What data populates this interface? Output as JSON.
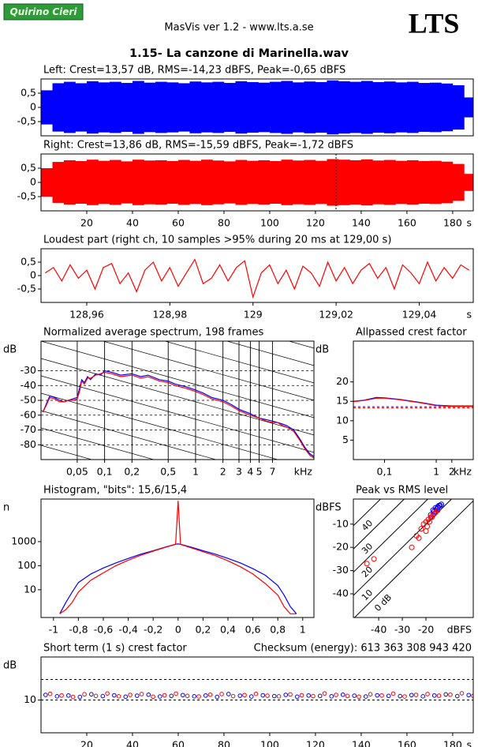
{
  "header": {
    "logo": "Quirino Cieri",
    "app": "MasVis ver 1.2 - www.lts.a.se",
    "brand": "LTS",
    "file": "1.15- La canzone di Marinella.wav"
  },
  "chart_data": [
    {
      "type": "waveform",
      "title": "Left: Crest=13,57 dB, RMS=-14,23 dBFS, Peak=-0,65 dBFS",
      "color": "#0000ff",
      "xlim": [
        0,
        189
      ],
      "ylim": [
        -1,
        1
      ],
      "yticks": [
        {
          "value": 0.5,
          "label": "0,5"
        },
        0,
        {
          "value": -0.5,
          "label": "-0,5"
        }
      ],
      "x": [
        0,
        5,
        10,
        15,
        20,
        25,
        30,
        35,
        40,
        45,
        50,
        55,
        60,
        65,
        70,
        75,
        80,
        85,
        90,
        95,
        100,
        105,
        110,
        115,
        120,
        125,
        130,
        135,
        140,
        145,
        150,
        155,
        160,
        165,
        170,
        175,
        180,
        185
      ],
      "values": [
        0.6,
        0.85,
        0.9,
        0.85,
        0.92,
        0.88,
        0.9,
        0.86,
        0.93,
        0.87,
        0.9,
        0.88,
        0.85,
        0.91,
        0.88,
        0.9,
        0.86,
        0.92,
        0.89,
        0.87,
        0.9,
        0.93,
        0.88,
        0.91,
        0.89,
        0.95,
        0.92,
        0.9,
        0.93,
        0.89,
        0.91,
        0.88,
        0.9,
        0.86,
        0.87,
        0.84,
        0.78,
        0.35
      ]
    },
    {
      "type": "waveform",
      "title": "Right: Crest=13,86 dB, RMS=-15,59 dBFS, Peak=-1,72 dBFS",
      "color": "#ff0000",
      "xlim": [
        0,
        189
      ],
      "ylim": [
        -1,
        1
      ],
      "yticks": [
        {
          "value": 0.5,
          "label": "0,5"
        },
        0,
        {
          "value": -0.5,
          "label": "-0,5"
        }
      ],
      "xticks": [
        20,
        40,
        60,
        80,
        100,
        120,
        140,
        160,
        180
      ],
      "xlabel": "s",
      "marker": 129,
      "x": [
        0,
        5,
        10,
        15,
        20,
        25,
        30,
        35,
        40,
        45,
        50,
        55,
        60,
        65,
        70,
        75,
        80,
        85,
        90,
        95,
        100,
        105,
        110,
        115,
        120,
        125,
        130,
        135,
        140,
        145,
        150,
        155,
        160,
        165,
        170,
        175,
        180,
        185
      ],
      "values": [
        0.5,
        0.72,
        0.78,
        0.75,
        0.8,
        0.76,
        0.79,
        0.74,
        0.8,
        0.77,
        0.78,
        0.75,
        0.79,
        0.76,
        0.8,
        0.77,
        0.74,
        0.79,
        0.76,
        0.78,
        0.75,
        0.8,
        0.77,
        0.79,
        0.76,
        0.82,
        0.8,
        0.78,
        0.81,
        0.77,
        0.79,
        0.76,
        0.78,
        0.75,
        0.76,
        0.73,
        0.65,
        0.3
      ]
    },
    {
      "type": "line",
      "title": "Loudest part (right ch, 10 samples >95% during 20 ms at 129,00 s)",
      "color": "#ff0000",
      "xlim": [
        128.949,
        129.053
      ],
      "ylim": [
        -1,
        1
      ],
      "yticks": [
        {
          "value": 0.5,
          "label": "0,5"
        },
        0,
        {
          "value": -0.5,
          "label": "-0,5"
        }
      ],
      "xticks": [
        {
          "value": 128.96,
          "label": "128,96"
        },
        {
          "value": 128.98,
          "label": "128,98"
        },
        129,
        {
          "value": 129.02,
          "label": "129,02"
        },
        {
          "value": 129.04,
          "label": "129,04"
        }
      ],
      "xlabel": "s",
      "x": [
        128.95,
        128.952,
        128.954,
        128.956,
        128.958,
        128.96,
        128.962,
        128.964,
        128.966,
        128.968,
        128.97,
        128.972,
        128.974,
        128.976,
        128.978,
        128.98,
        128.982,
        128.984,
        128.986,
        128.988,
        128.99,
        128.992,
        128.994,
        128.996,
        128.998,
        129,
        129.002,
        129.004,
        129.006,
        129.008,
        129.01,
        129.012,
        129.014,
        129.016,
        129.018,
        129.02,
        129.022,
        129.024,
        129.026,
        129.028,
        129.03,
        129.032,
        129.034,
        129.036,
        129.038,
        129.04,
        129.042,
        129.044,
        129.046,
        129.048,
        129.05,
        129.052
      ],
      "values": [
        0.1,
        0.3,
        -0.2,
        0.4,
        -0.1,
        0.2,
        -0.5,
        0.3,
        0.45,
        -0.3,
        0.1,
        -0.6,
        0.2,
        0.5,
        -0.2,
        0.3,
        -0.4,
        0.1,
        0.6,
        -0.3,
        -0.1,
        0.4,
        -0.2,
        0.3,
        0.55,
        -0.8,
        0.1,
        0.4,
        -0.3,
        0.2,
        -0.5,
        0.35,
        0.1,
        -0.4,
        0.5,
        -0.2,
        0.3,
        -0.3,
        0.2,
        0.45,
        -0.1,
        0.3,
        -0.5,
        0.4,
        0.1,
        -0.3,
        0.5,
        -0.2,
        0.3,
        -0.1,
        0.4,
        0.2
      ]
    },
    {
      "type": "line",
      "title": "Normalized average spectrum, 198 frames",
      "ylabel": "dB",
      "xlabel": "kHz",
      "xscale": "log",
      "grid": true,
      "xlim": [
        0.02,
        20
      ],
      "ylim": [
        -90,
        -10
      ],
      "yticks": [
        -30,
        -40,
        -50,
        -60,
        -70,
        -80
      ],
      "xticks": [
        {
          "value": 0.05,
          "label": "0,05"
        },
        {
          "value": 0.1,
          "label": "0,1"
        },
        {
          "value": 0.2,
          "label": "0,2"
        },
        {
          "value": 0.5,
          "label": "0,5"
        },
        1,
        2,
        3,
        4,
        5,
        7
      ],
      "x": [
        0.021,
        0.023,
        0.025,
        0.028,
        0.032,
        0.036,
        0.04,
        0.045,
        0.05,
        0.053,
        0.056,
        0.06,
        0.065,
        0.07,
        0.08,
        0.09,
        0.1,
        0.12,
        0.15,
        0.2,
        0.25,
        0.3,
        0.4,
        0.5,
        0.6,
        0.8,
        1,
        1.2,
        1.5,
        2,
        2.5,
        3,
        4,
        5,
        6,
        7,
        8,
        9,
        10,
        12,
        14,
        16,
        18,
        20
      ],
      "series": [
        {
          "color": "#0000ff",
          "values": [
            -58,
            -52,
            -47,
            -48,
            -50,
            -51,
            -50,
            -49,
            -48,
            -42,
            -36,
            -38,
            -34,
            -36,
            -32,
            -33,
            -30,
            -31,
            -33,
            -32,
            -34,
            -33,
            -36,
            -37,
            -39,
            -41,
            -43,
            -45,
            -48,
            -50,
            -53,
            -56,
            -59,
            -62,
            -63,
            -64,
            -65,
            -66,
            -67,
            -70,
            -76,
            -82,
            -86,
            -88
          ]
        },
        {
          "color": "#ff0000",
          "values": [
            -58,
            -53,
            -48,
            -49,
            -51,
            -51,
            -50,
            -50,
            -49,
            -44,
            -37,
            -39,
            -35,
            -35,
            -33,
            -32,
            -31,
            -32,
            -34,
            -33,
            -35,
            -34,
            -37,
            -38,
            -40,
            -42,
            -44,
            -46,
            -49,
            -51,
            -54,
            -57,
            -60,
            -62,
            -64,
            -65,
            -65,
            -67,
            -68,
            -71,
            -77,
            -83,
            -87,
            -89
          ]
        }
      ]
    },
    {
      "type": "line",
      "title": "Allpassed crest factor",
      "ylabel": "dB",
      "xlabel": "kHz",
      "xscale": "log",
      "xlim": [
        0.025,
        5.2
      ],
      "ylim": [
        0,
        30.5
      ],
      "yticks": [
        20,
        15,
        10,
        5
      ],
      "xticks": [
        {
          "value": 0.1,
          "label": "0,1"
        },
        1,
        2
      ],
      "x": [
        0.025,
        0.04,
        0.07,
        0.1,
        0.2,
        0.5,
        1,
        2,
        5.2
      ],
      "series": [
        {
          "color": "#0000ff",
          "mean": 13.6,
          "values": [
            15,
            15.3,
            16,
            15.9,
            15.5,
            14.7,
            14,
            13.8,
            13.8
          ]
        },
        {
          "color": "#ff0000",
          "mean": 13.3,
          "values": [
            14.9,
            15.2,
            15.8,
            15.8,
            15.4,
            14.6,
            13.9,
            13.7,
            13.7
          ]
        }
      ]
    },
    {
      "type": "line",
      "title": "Histogram, \"bits\": 15,6/15,4",
      "ylabel": "n",
      "yscale": "log",
      "xlim": [
        -1.1,
        1.09
      ],
      "ylim": [
        0.7,
        59000
      ],
      "yticks": [
        1000,
        100,
        10
      ],
      "xticks": [
        -1,
        {
          "value": -0.8,
          "label": "-0,8"
        },
        {
          "value": -0.6,
          "label": "-0,6"
        },
        {
          "value": -0.4,
          "label": "-0,4"
        },
        {
          "value": -0.2,
          "label": "-0,2"
        },
        0,
        {
          "value": 0.2,
          "label": "0,2"
        },
        {
          "value": 0.4,
          "label": "0,4"
        },
        {
          "value": 0.6,
          "label": "0,6"
        },
        {
          "value": 0.8,
          "label": "0,8"
        },
        1
      ],
      "x": [
        -0.95,
        -0.9,
        -0.85,
        -0.8,
        -0.7,
        -0.6,
        -0.5,
        -0.4,
        -0.3,
        -0.2,
        -0.1,
        -0.02,
        0,
        0.02,
        0.1,
        0.2,
        0.3,
        0.4,
        0.5,
        0.6,
        0.7,
        0.8,
        0.85,
        0.9,
        0.95
      ],
      "series": [
        {
          "color": "#0000ff",
          "values": [
            1,
            3,
            8,
            20,
            45,
            80,
            130,
            200,
            300,
            420,
            600,
            780,
            800,
            780,
            600,
            420,
            300,
            200,
            130,
            75,
            40,
            15,
            6,
            2,
            1
          ]
        },
        {
          "color": "#ff0000",
          "values": [
            1,
            1.5,
            3,
            8,
            25,
            50,
            100,
            170,
            270,
            400,
            580,
            770,
            50000,
            770,
            560,
            380,
            260,
            160,
            90,
            45,
            18,
            6,
            2,
            1,
            1
          ]
        }
      ]
    },
    {
      "type": "scatter",
      "title": "Peak vs RMS level",
      "ylabel": "dBFS",
      "xlabel": "dBFS",
      "xlim": [
        -50.7,
        0
      ],
      "ylim": [
        -50.2,
        0.8
      ],
      "xticks": [
        -40,
        -30,
        -20
      ],
      "yticks": [
        -10,
        -20,
        -30,
        -40
      ],
      "diagonals": [
        40,
        30,
        20,
        10,
        {
          "value": 0,
          "label": "0 dB"
        }
      ],
      "series": [
        {
          "color": "#0000ff",
          "x": [
            -17,
            -16,
            -15,
            -14,
            -16.5,
            -15.5,
            -14.5,
            -18,
            -13.5,
            -15
          ],
          "values": [
            -4,
            -3,
            -2.5,
            -2,
            -4.5,
            -3.5,
            -2,
            -6,
            -1.5,
            -3
          ]
        },
        {
          "color": "#ff0000",
          "x": [
            -26,
            -24,
            -22,
            -21,
            -20,
            -19,
            -18,
            -17,
            -16,
            -15,
            -20,
            -18.5,
            -17.5,
            -16.5,
            -19.5,
            -23,
            -45,
            -42
          ],
          "values": [
            -20,
            -15,
            -12,
            -10,
            -9,
            -8,
            -7,
            -6,
            -5,
            -4,
            -13,
            -9,
            -7,
            -5.5,
            -11,
            -16,
            -27,
            -25
          ]
        }
      ]
    },
    {
      "type": "scatter",
      "title": "Short term (1 s) crest factor",
      "annotation": "Checksum (energy):  613 363 308 943 420",
      "ylabel": "dB",
      "xlabel": "s",
      "xlim": [
        0,
        189
      ],
      "ylim": [
        -6,
        31
      ],
      "yticks": [
        10
      ],
      "reflines": [
        10,
        20
      ],
      "xticks": [
        20,
        40,
        60,
        80,
        100,
        120,
        140,
        160,
        180
      ],
      "series": [
        {
          "color": "#0000ff",
          "x": [
            2,
            7,
            12,
            17,
            22,
            27,
            32,
            37,
            42,
            47,
            52,
            57,
            62,
            67,
            72,
            77,
            82,
            87,
            92,
            97,
            102,
            107,
            112,
            117,
            122,
            127,
            132,
            137,
            142,
            147,
            152,
            157,
            162,
            167,
            172,
            177,
            182,
            187
          ],
          "values": [
            12.5,
            11.8,
            12.2,
            11.5,
            12.8,
            11.9,
            12.3,
            11.6,
            12.1,
            12.6,
            11.7,
            12.0,
            12.4,
            11.8,
            12.2,
            11.5,
            12.9,
            12.1,
            11.7,
            12.3,
            11.9,
            12.5,
            11.6,
            12.2,
            12.0,
            11.8,
            12.6,
            12.1,
            11.7,
            12.3,
            12.0,
            11.9,
            12.4,
            11.8,
            12.2,
            12.7,
            11.9,
            12.4
          ]
        },
        {
          "color": "#ff0000",
          "x": [
            4,
            9,
            14,
            19,
            24,
            29,
            34,
            39,
            44,
            49,
            54,
            59,
            64,
            69,
            74,
            79,
            84,
            89,
            94,
            99,
            104,
            109,
            114,
            119,
            124,
            129,
            134,
            139,
            144,
            149,
            154,
            159,
            164,
            169,
            174,
            179,
            184,
            189
          ],
          "values": [
            13.0,
            12.2,
            11.5,
            12.8,
            12.0,
            13.2,
            11.8,
            12.5,
            12.9,
            11.6,
            12.3,
            13.1,
            12.0,
            11.7,
            12.6,
            12.9,
            11.9,
            12.4,
            13.0,
            12.1,
            11.8,
            12.7,
            12.3,
            11.9,
            13.2,
            12.5,
            12.0,
            11.6,
            12.8,
            12.2,
            13.1,
            11.7,
            12.5,
            12.9,
            12.1,
            12.6,
            13.3,
            12.0
          ]
        }
      ]
    }
  ]
}
